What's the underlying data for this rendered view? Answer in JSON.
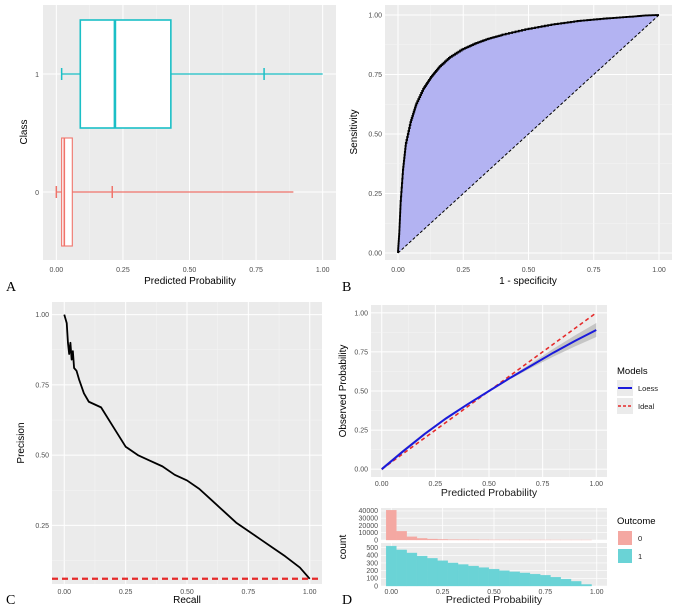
{
  "colors": {
    "panel_bg": "#ebebeb",
    "grid_major": "#ffffff",
    "class1": "#1bbfc6",
    "class0": "#f0746b",
    "roc_fill": "#b3b3f2",
    "loess": "#1a1adb",
    "ideal": "#e52b2b",
    "hist0": "#f4a8a2",
    "hist1": "#6ad3d6"
  },
  "chart_data": [
    {
      "id": "A",
      "panel_label": "A",
      "type": "box",
      "orientation": "horizontal",
      "xlabel": "Predicted Probability",
      "ylabel": "Class",
      "xlim": [
        -0.05,
        1.05
      ],
      "x_ticks": [
        "0.00",
        "0.25",
        "0.50",
        "0.75",
        "1.00"
      ],
      "categories": [
        "0",
        "1"
      ],
      "boxes": [
        {
          "class": "0",
          "whisker_low": 0.0,
          "q1": 0.02,
          "median": 0.03,
          "q3": 0.06,
          "whisker_high": 0.21,
          "outlier_max": 0.89
        },
        {
          "class": "1",
          "whisker_low": 0.02,
          "q1": 0.09,
          "median": 0.22,
          "q3": 0.43,
          "whisker_high": 0.78,
          "outlier_max": 1.0
        }
      ]
    },
    {
      "id": "B",
      "panel_label": "B",
      "type": "line",
      "subtype": "roc",
      "xlabel": "1 - specificity",
      "ylabel": "Sensitivity",
      "xlim": [
        0,
        1
      ],
      "ylim": [
        0,
        1
      ],
      "x_ticks": [
        "0.00",
        "0.25",
        "0.50",
        "0.75",
        "1.00"
      ],
      "y_ticks": [
        "0.00",
        "0.25",
        "0.50",
        "0.75",
        "1.00"
      ],
      "x": [
        0,
        0.005,
        0.01,
        0.02,
        0.03,
        0.05,
        0.07,
        0.1,
        0.13,
        0.16,
        0.2,
        0.25,
        0.3,
        0.35,
        0.4,
        0.5,
        0.6,
        0.7,
        0.8,
        0.9,
        0.95,
        1.0
      ],
      "y": [
        0,
        0.08,
        0.2,
        0.35,
        0.45,
        0.55,
        0.62,
        0.69,
        0.74,
        0.78,
        0.82,
        0.855,
        0.88,
        0.9,
        0.915,
        0.94,
        0.96,
        0.975,
        0.985,
        0.993,
        0.998,
        1.0
      ],
      "reference_line": {
        "x": [
          0,
          1
        ],
        "y": [
          0,
          1
        ]
      }
    },
    {
      "id": "C",
      "panel_label": "C",
      "type": "line",
      "subtype": "precision-recall",
      "xlabel": "Recall",
      "ylabel": "Precision",
      "xlim": [
        -0.05,
        1.05
      ],
      "ylim": [
        0.045,
        1.045
      ],
      "x_ticks": [
        "0.00",
        "0.25",
        "0.50",
        "0.75",
        "1.00"
      ],
      "y_ticks": [
        "0.25",
        "0.50",
        "0.75",
        "1.00"
      ],
      "x": [
        0,
        0.01,
        0.015,
        0.02,
        0.025,
        0.03,
        0.035,
        0.04,
        0.05,
        0.06,
        0.08,
        0.1,
        0.15,
        0.2,
        0.25,
        0.3,
        0.35,
        0.4,
        0.45,
        0.5,
        0.55,
        0.6,
        0.65,
        0.7,
        0.75,
        0.8,
        0.85,
        0.9,
        0.93,
        0.96,
        0.98,
        1.0
      ],
      "y": [
        1.0,
        0.97,
        0.9,
        0.86,
        0.9,
        0.84,
        0.87,
        0.81,
        0.8,
        0.77,
        0.72,
        0.69,
        0.67,
        0.6,
        0.53,
        0.5,
        0.48,
        0.46,
        0.43,
        0.41,
        0.38,
        0.34,
        0.3,
        0.26,
        0.23,
        0.2,
        0.17,
        0.14,
        0.12,
        0.1,
        0.08,
        0.06
      ],
      "baseline": 0.06
    },
    {
      "id": "D",
      "panel_label": "D",
      "type": "line",
      "subtype": "calibration",
      "xlabel": "Predicted Probability",
      "ylabel": "Observed Probability",
      "xlim": [
        -0.05,
        1.05
      ],
      "ylim": [
        -0.05,
        1.05
      ],
      "x_ticks": [
        "0.00",
        "0.25",
        "0.50",
        "0.75",
        "1.00"
      ],
      "y_ticks": [
        "0.00",
        "0.25",
        "0.50",
        "0.75",
        "1.00"
      ],
      "legend": {
        "title": "Models",
        "position": "right",
        "entries": [
          "Loess",
          "Ideal"
        ]
      },
      "series": [
        {
          "name": "Loess",
          "x": [
            0,
            0.1,
            0.2,
            0.3,
            0.4,
            0.5,
            0.6,
            0.7,
            0.8,
            0.9,
            1.0
          ],
          "y": [
            0,
            0.115,
            0.225,
            0.325,
            0.415,
            0.5,
            0.585,
            0.665,
            0.745,
            0.82,
            0.89
          ],
          "band_halfwidth": [
            0.01,
            0.01,
            0.01,
            0.008,
            0.006,
            0.005,
            0.008,
            0.015,
            0.025,
            0.035,
            0.045
          ]
        },
        {
          "name": "Ideal",
          "x": [
            0,
            1
          ],
          "y": [
            0,
            1
          ]
        }
      ]
    },
    {
      "id": "D-hist",
      "type": "bar",
      "subtype": "histogram",
      "xlabel": "Predicted Probability",
      "ylabel": "count",
      "x_ticks": [
        "0.00",
        "0.25",
        "0.50",
        "0.75",
        "1.00"
      ],
      "legend": {
        "title": "Outcome",
        "position": "right",
        "entries": [
          "0",
          "1"
        ]
      },
      "facets": [
        {
          "outcome": "0",
          "y_ticks": [
            "0",
            "10000",
            "20000",
            "30000",
            "40000"
          ],
          "ylim": [
            0,
            44000
          ],
          "bin_start": 0,
          "bin_width": 0.05,
          "counts": [
            41000,
            12000,
            4500,
            2200,
            1300,
            800,
            550,
            380,
            260,
            190,
            140,
            100,
            80,
            60,
            45,
            35,
            25,
            18,
            12,
            8
          ]
        },
        {
          "outcome": "1",
          "y_ticks": [
            "0",
            "100",
            "200",
            "300",
            "400",
            "500"
          ],
          "ylim": [
            0,
            560
          ],
          "bin_start": 0,
          "bin_width": 0.05,
          "counts": [
            520,
            470,
            430,
            390,
            360,
            330,
            300,
            280,
            260,
            240,
            220,
            200,
            185,
            170,
            155,
            140,
            115,
            90,
            60,
            20
          ]
        }
      ]
    }
  ]
}
